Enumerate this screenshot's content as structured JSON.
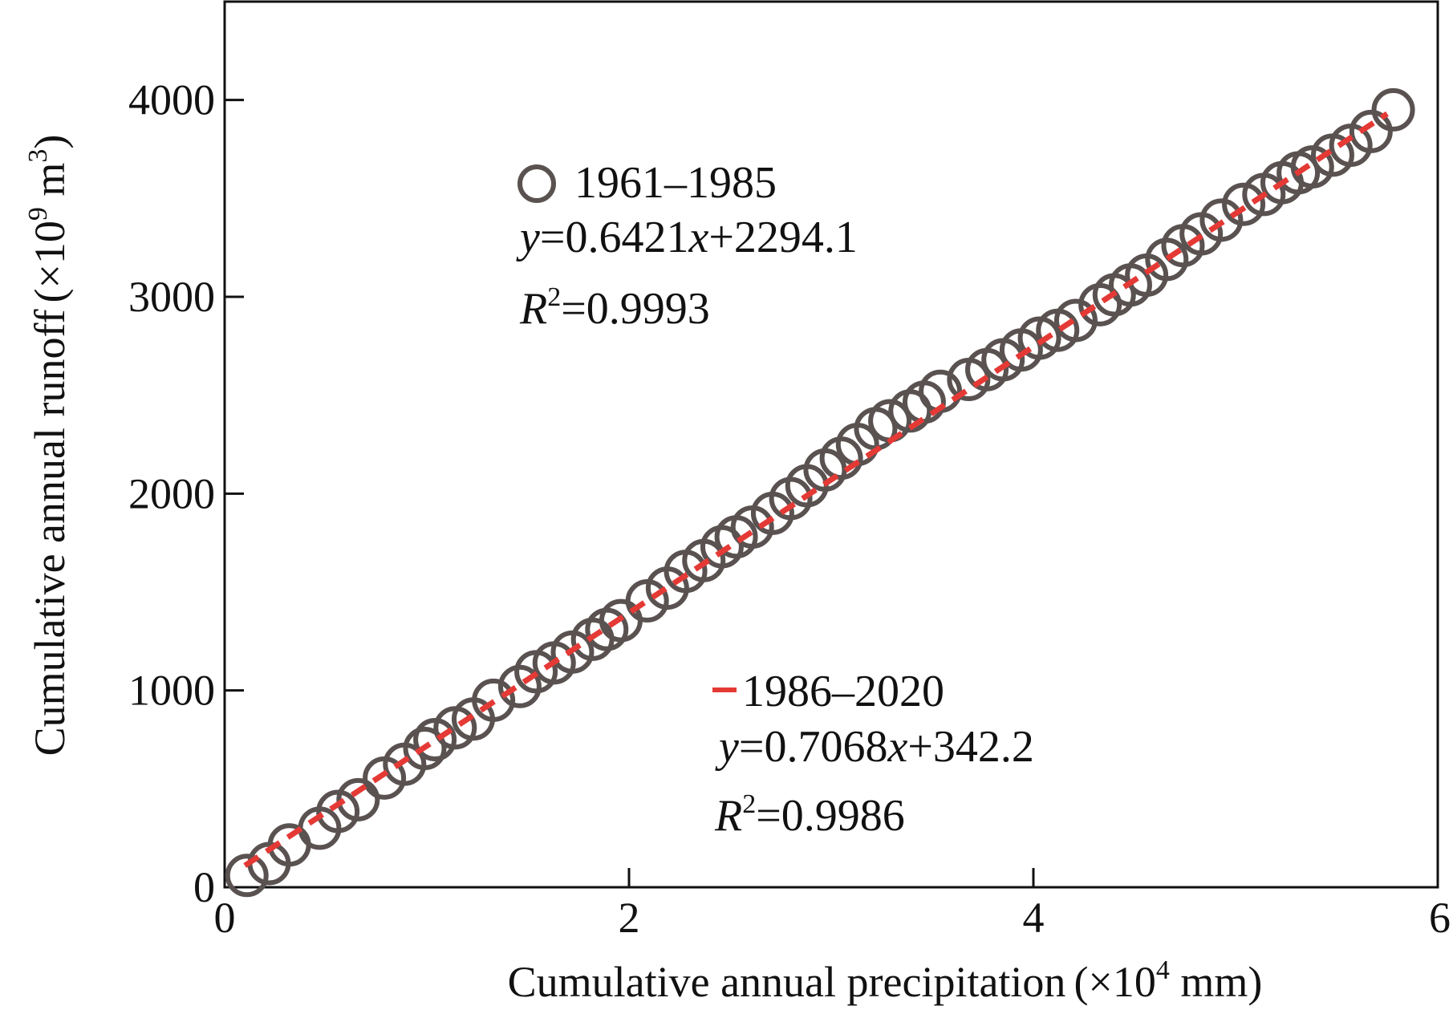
{
  "chart_data": {
    "type": "scatter",
    "xlabel": "Cumulative annual precipitation",
    "xlabel_unit_prefix": "(×10",
    "xlabel_unit_exp": "4",
    "xlabel_unit_suffix": " mm)",
    "ylabel": "Cumulative annual runoff",
    "ylabel_unit_prefix": "(×10",
    "ylabel_unit_exp": "9",
    "ylabel_unit_suffix": " m",
    "ylabel_unit_exp2": "3",
    "ylabel_unit_close": ")",
    "xlim": [
      0,
      6
    ],
    "ylim": [
      0,
      4500
    ],
    "x_ticks": [
      0,
      2,
      4,
      6
    ],
    "y_ticks": [
      0,
      1000,
      2000,
      3000,
      4000
    ],
    "x_tick_labels": [
      "0",
      "2",
      "4",
      "6"
    ],
    "y_tick_labels": [
      "0",
      "1000",
      "2000",
      "3000",
      "4000"
    ],
    "grid": false,
    "series": [
      {
        "name": "1961–1985",
        "marker": "open-circle",
        "color": "#5a5251",
        "equation_y": "y",
        "equation_rest": "=0.6421",
        "equation_x": "x",
        "equation_tail": "+2294.1",
        "r2_label": "R",
        "r2_exp": "2",
        "r2_value": "=0.9993",
        "points": [
          [
            0.11,
            60
          ],
          [
            0.22,
            120
          ],
          [
            0.32,
            215
          ],
          [
            0.47,
            300
          ],
          [
            0.56,
            385
          ],
          [
            0.66,
            445
          ],
          [
            0.79,
            555
          ],
          [
            0.89,
            625
          ],
          [
            0.99,
            705
          ],
          [
            1.04,
            750
          ],
          [
            1.14,
            810
          ],
          [
            1.23,
            855
          ],
          [
            1.33,
            950
          ],
          [
            1.46,
            1020
          ],
          [
            1.54,
            1095
          ],
          [
            1.63,
            1140
          ],
          [
            1.72,
            1195
          ],
          [
            1.82,
            1260
          ],
          [
            1.89,
            1310
          ],
          [
            1.96,
            1355
          ],
          [
            2.09,
            1455
          ],
          [
            2.19,
            1520
          ],
          [
            2.28,
            1605
          ],
          [
            2.37,
            1660
          ],
          [
            2.46,
            1730
          ],
          [
            2.53,
            1780
          ],
          [
            2.61,
            1830
          ],
          [
            2.71,
            1900
          ],
          [
            2.8,
            1975
          ],
          [
            2.88,
            2040
          ],
          [
            2.97,
            2120
          ],
          [
            3.05,
            2180
          ],
          [
            3.13,
            2250
          ],
          [
            3.22,
            2330
          ],
          [
            3.29,
            2370
          ],
          [
            3.39,
            2420
          ],
          [
            3.46,
            2465
          ],
          [
            3.54,
            2520
          ]
        ]
      },
      {
        "name": "1986–2020",
        "marker": "open-circle",
        "line": "dashed",
        "color": "#e53935",
        "equation_y": "y",
        "equation_rest": "=0.7068",
        "equation_x": "x",
        "equation_tail": "+342.2",
        "r2_label": "R",
        "r2_exp": "2",
        "r2_value": "=0.9986",
        "points": [
          [
            3.68,
            2580
          ],
          [
            3.77,
            2630
          ],
          [
            3.85,
            2680
          ],
          [
            3.94,
            2730
          ],
          [
            4.03,
            2790
          ],
          [
            4.12,
            2830
          ],
          [
            4.21,
            2880
          ],
          [
            4.33,
            2960
          ],
          [
            4.4,
            3010
          ],
          [
            4.48,
            3060
          ],
          [
            4.56,
            3110
          ],
          [
            4.66,
            3190
          ],
          [
            4.74,
            3260
          ],
          [
            4.83,
            3320
          ],
          [
            4.93,
            3390
          ],
          [
            5.04,
            3470
          ],
          [
            5.14,
            3520
          ],
          [
            5.23,
            3580
          ],
          [
            5.31,
            3630
          ],
          [
            5.38,
            3660
          ],
          [
            5.48,
            3720
          ],
          [
            5.57,
            3770
          ],
          [
            5.67,
            3840
          ],
          [
            5.78,
            3950
          ]
        ],
        "fit_line": [
          [
            0.1,
            110
          ],
          [
            5.75,
            3930
          ]
        ]
      }
    ]
  }
}
